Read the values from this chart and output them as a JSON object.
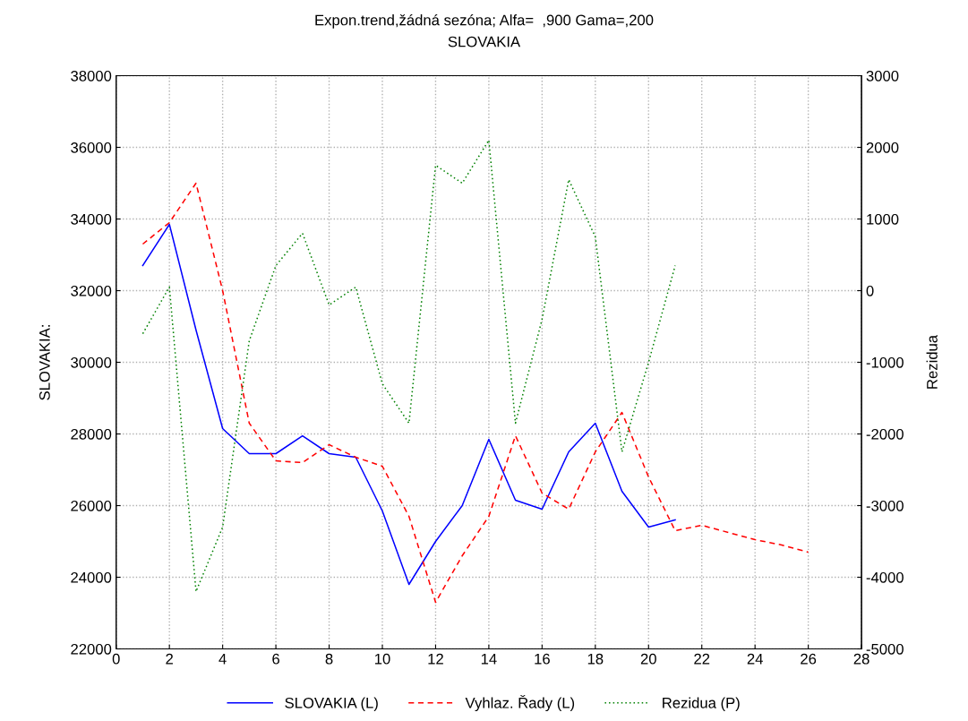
{
  "chart_data": {
    "type": "line",
    "title": "Expon.trend,žádná sezóna; Alfa=  ,900 Gama=,200",
    "subtitle": "SLOVAKIA",
    "ylabel": "SLOVAKIA:",
    "y2label": "Rezidua",
    "xlim": [
      0,
      28
    ],
    "xticks": [
      0,
      2,
      4,
      6,
      8,
      10,
      12,
      14,
      16,
      18,
      20,
      22,
      24,
      26,
      28
    ],
    "ylim": [
      22000,
      38000
    ],
    "yticks": [
      22000,
      24000,
      26000,
      28000,
      30000,
      32000,
      34000,
      36000,
      38000
    ],
    "y2lim": [
      -5000,
      3000
    ],
    "y2ticks": [
      -5000,
      -4000,
      -3000,
      -2000,
      -1000,
      0,
      1000,
      2000,
      3000
    ],
    "grid": true,
    "legend": "bottom",
    "series": [
      {
        "name": "SLOVAKIA (L)",
        "color": "#0000ff",
        "line_style": "solid",
        "x": [
          1,
          2,
          3,
          4,
          5,
          6,
          7,
          8,
          9,
          10,
          11,
          12,
          13,
          14,
          15,
          16,
          17,
          18,
          19,
          20,
          21
        ],
        "values": [
          32700,
          33850,
          30900,
          28150,
          27450,
          27450,
          27950,
          27450,
          27350,
          25850,
          23800,
          25000,
          26000,
          27850,
          26150,
          25900,
          27500,
          28300,
          26400,
          25400,
          25600
        ]
      },
      {
        "name": "Vyhlaz. Řady (L)",
        "color": "#ff0000",
        "line_style": "dashed",
        "x": [
          1,
          2,
          3,
          4,
          5,
          6,
          7,
          8,
          9,
          10,
          11,
          12,
          13,
          14,
          15,
          16,
          17,
          18,
          19,
          20,
          21,
          22,
          23,
          24,
          25,
          26
        ],
        "values": [
          33300,
          33900,
          35000,
          32000,
          28300,
          27250,
          27200,
          27700,
          27350,
          27100,
          25700,
          23300,
          24600,
          25700,
          27950,
          26350,
          25900,
          27500,
          28600,
          26800,
          25300,
          25450,
          25250,
          25050,
          24900,
          24700
        ]
      },
      {
        "name": "Rezidua (P)",
        "color": "#008000",
        "line_style": "dotted",
        "axis": "y2",
        "x": [
          1,
          2,
          3,
          4,
          5,
          6,
          7,
          8,
          9,
          10,
          11,
          12,
          13,
          14,
          15,
          16,
          17,
          18,
          19,
          20,
          21
        ],
        "values": [
          -600,
          50,
          -4200,
          -3300,
          -700,
          350,
          800,
          -200,
          50,
          -1300,
          -1850,
          1750,
          1500,
          2100,
          -1850,
          -400,
          1550,
          750,
          -2250,
          -1000,
          350
        ]
      }
    ]
  }
}
